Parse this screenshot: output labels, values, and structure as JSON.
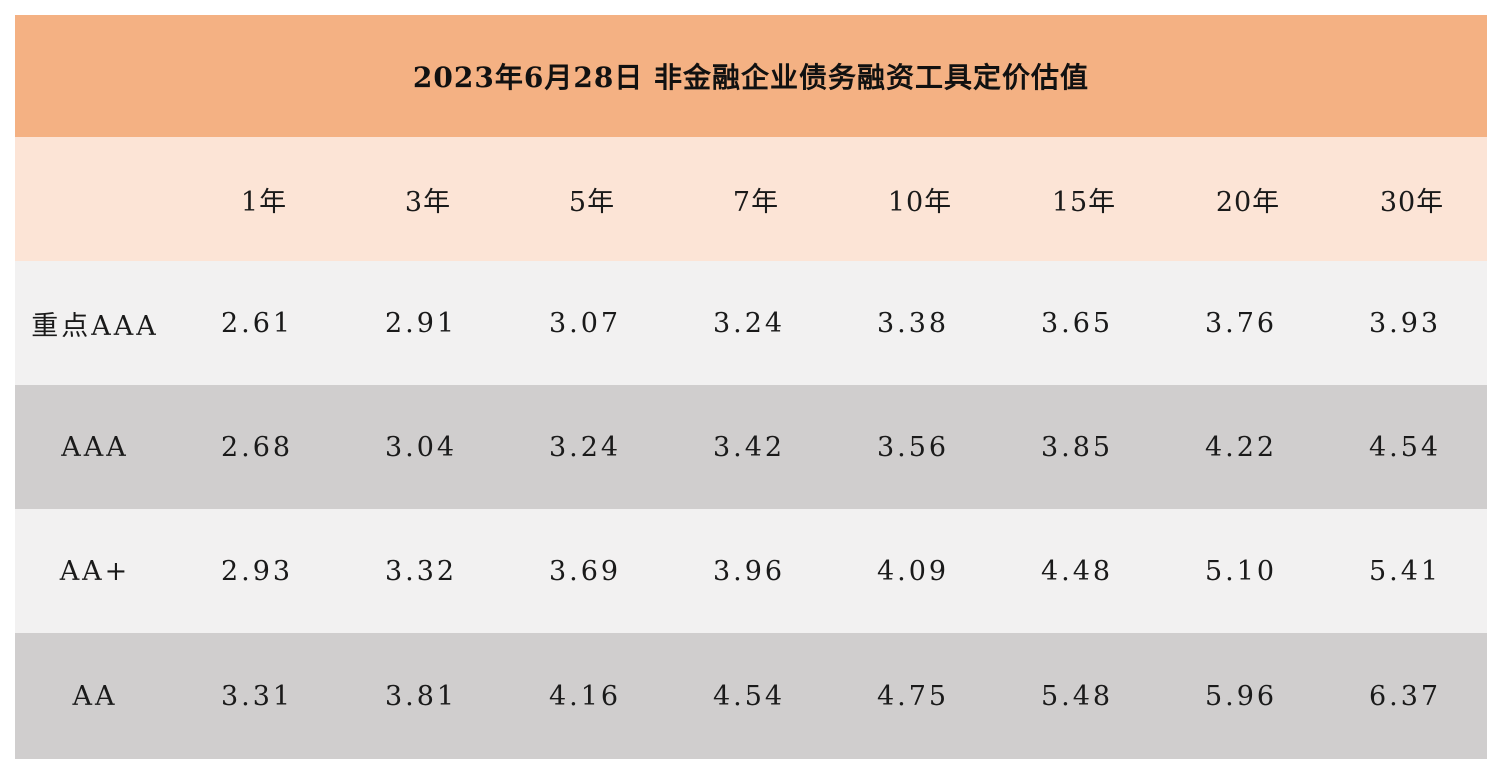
{
  "chart_data": {
    "type": "table",
    "title": "2023年6月28日  非金融企业债务融资工具定价估值",
    "columns": [
      "1年",
      "3年",
      "5年",
      "7年",
      "10年",
      "15年",
      "20年",
      "30年"
    ],
    "rows": [
      {
        "label": "重点AAA",
        "values": [
          "2.61",
          "2.91",
          "3.07",
          "3.24",
          "3.38",
          "3.65",
          "3.76",
          "3.93"
        ]
      },
      {
        "label": "AAA",
        "values": [
          "2.68",
          "3.04",
          "3.24",
          "3.42",
          "3.56",
          "3.85",
          "4.22",
          "4.54"
        ]
      },
      {
        "label": "AA+",
        "values": [
          "2.93",
          "3.32",
          "3.69",
          "3.96",
          "4.09",
          "4.48",
          "5.10",
          "5.41"
        ]
      },
      {
        "label": "AA",
        "values": [
          "3.31",
          "3.81",
          "4.16",
          "4.54",
          "4.75",
          "5.48",
          "5.96",
          "6.37"
        ]
      }
    ]
  },
  "colors": {
    "title_bg": "#f4b183",
    "header_bg": "#fce4d6",
    "row_light": "#f2f1f1",
    "row_dark": "#d0cece"
  }
}
